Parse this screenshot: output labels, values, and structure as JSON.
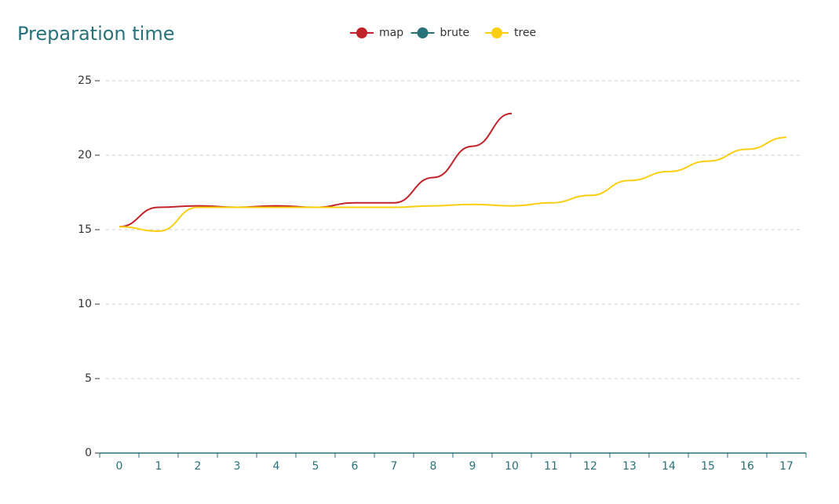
{
  "chart_data": {
    "type": "line",
    "title": "Preparation time",
    "categories": [
      "0",
      "1",
      "2",
      "3",
      "4",
      "5",
      "6",
      "7",
      "8",
      "9",
      "10",
      "11",
      "12",
      "13",
      "14",
      "15",
      "16",
      "17"
    ],
    "series": [
      {
        "name": "map",
        "color": "#c1232b",
        "values": [
          15.2,
          16.5,
          16.6,
          16.5,
          16.6,
          16.5,
          16.8,
          16.8,
          18.5,
          20.6,
          22.8,
          null,
          null,
          null,
          null,
          null,
          null,
          null
        ]
      },
      {
        "name": "brute",
        "color": "#27727b",
        "values": [
          null,
          null,
          null,
          null,
          null,
          null,
          null,
          null,
          null,
          null,
          null,
          null,
          null,
          null,
          null,
          null,
          null,
          null
        ]
      },
      {
        "name": "tree",
        "color": "#fcce10",
        "values": [
          15.2,
          14.9,
          16.5,
          16.5,
          16.5,
          16.5,
          16.5,
          16.5,
          16.6,
          16.7,
          16.6,
          16.8,
          17.3,
          18.3,
          18.9,
          19.6,
          20.4,
          21.2
        ]
      }
    ],
    "ylim": [
      0,
      25
    ],
    "yticks": [
      0,
      5,
      10,
      15,
      20,
      25
    ],
    "grid": true,
    "smooth": true,
    "legend": "top"
  }
}
